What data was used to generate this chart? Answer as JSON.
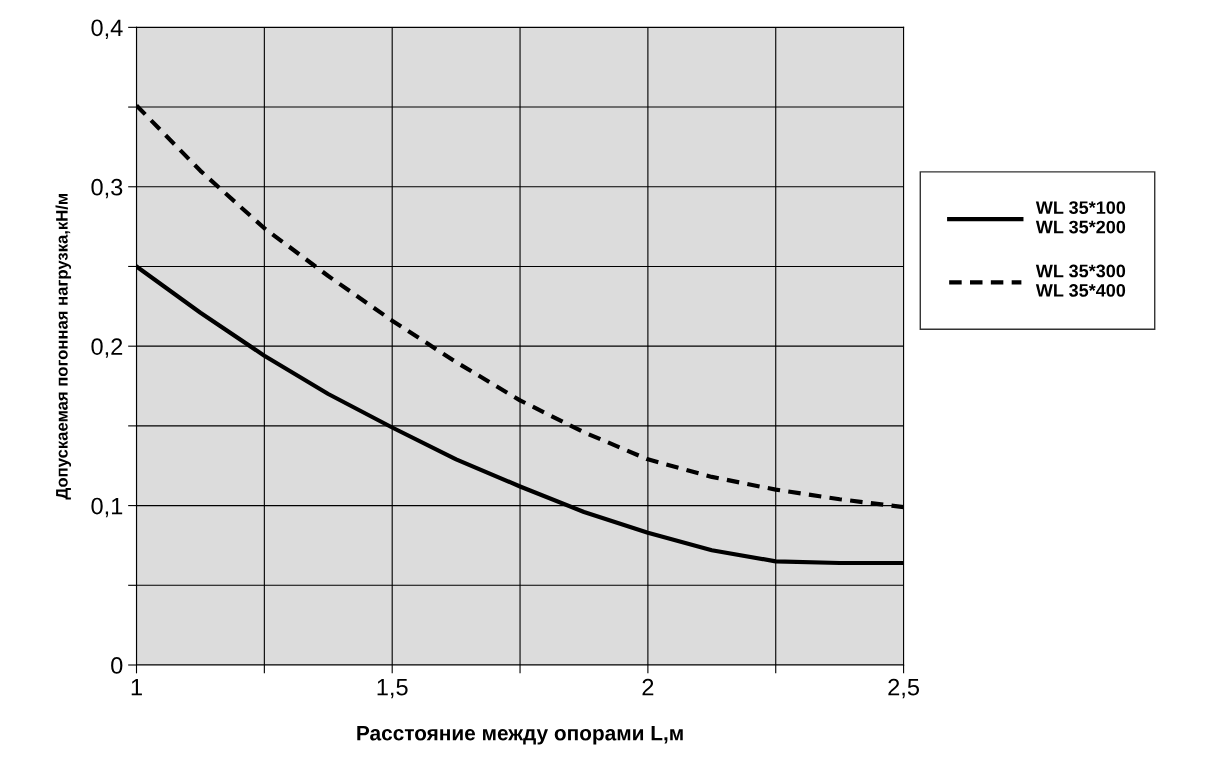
{
  "chart_data": {
    "type": "line",
    "xlabel": "Расстояние между опорами L,м",
    "ylabel": "Допускаемая погонная нагрузка,кН/м",
    "x": [
      1,
      1.125,
      1.25,
      1.375,
      1.5,
      1.625,
      1.75,
      1.875,
      2,
      2.125,
      2.25,
      2.375,
      2.5
    ],
    "series": [
      {
        "name": "WL 35*100\nWL 35*200",
        "color": "#000000",
        "line_style": "solid",
        "values": [
          0.25,
          0.221,
          0.194,
          0.17,
          0.149,
          0.129,
          0.112,
          0.096,
          0.083,
          0.072,
          0.065,
          0.064,
          0.064
        ]
      },
      {
        "name": "WL 35*300\nWL 35*400",
        "color": "#000000",
        "line_style": "dashed",
        "values": [
          0.351,
          0.31,
          0.274,
          0.244,
          0.216,
          0.19,
          0.166,
          0.146,
          0.129,
          0.118,
          0.11,
          0.104,
          0.099
        ]
      }
    ],
    "xlim": [
      1,
      2.5
    ],
    "ylim": [
      0,
      0.4
    ],
    "xticks": [
      {
        "value": 1,
        "label": "1"
      },
      {
        "value": 1.25,
        "label": null
      },
      {
        "value": 1.5,
        "label": "1,5"
      },
      {
        "value": 1.75,
        "label": null
      },
      {
        "value": 2,
        "label": "2"
      },
      {
        "value": 2.25,
        "label": null
      },
      {
        "value": 2.5,
        "label": "2,5"
      }
    ],
    "yticks": [
      {
        "value": 0,
        "label": "0"
      },
      {
        "value": 0.05,
        "label": null
      },
      {
        "value": 0.1,
        "label": "0,1"
      },
      {
        "value": 0.15,
        "label": null
      },
      {
        "value": 0.2,
        "label": "0,2"
      },
      {
        "value": 0.25,
        "label": null
      },
      {
        "value": 0.3,
        "label": "0,3"
      },
      {
        "value": 0.35,
        "label": null
      },
      {
        "value": 0.4,
        "label": "0,4"
      }
    ],
    "grid": true,
    "legend": "right",
    "marker": "none"
  }
}
